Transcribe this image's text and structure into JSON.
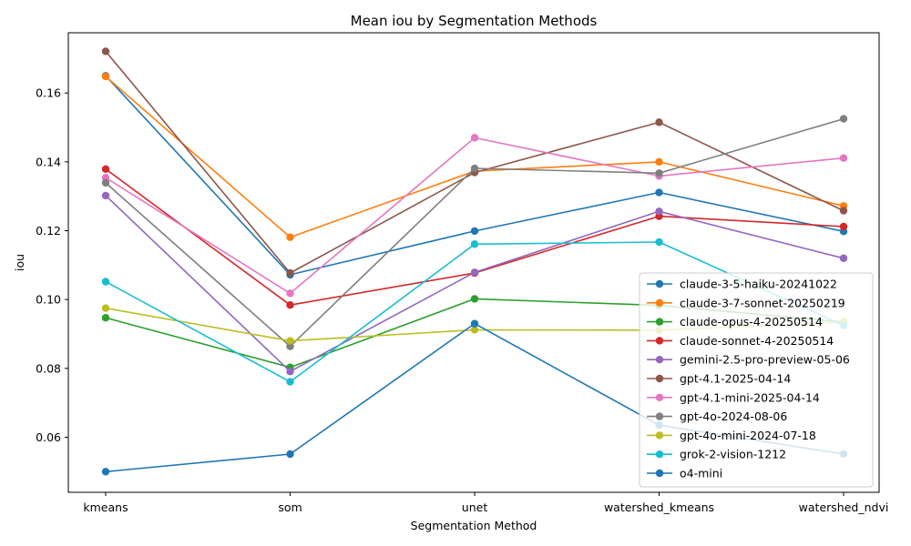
{
  "chart_data": {
    "type": "line",
    "title": "Mean iou by Segmentation Methods",
    "xlabel": "Segmentation Method",
    "ylabel": "iou",
    "categories": [
      "kmeans",
      "som",
      "unet",
      "watershed_kmeans",
      "watershed_ndvi"
    ],
    "ylim": [
      0.044,
      0.1775
    ],
    "yticks": [
      "0.06",
      "0.08",
      "0.10",
      "0.12",
      "0.14",
      "0.16"
    ],
    "grid": false,
    "legend_position": "lower right",
    "series": [
      {
        "name": "claude-3-5-haiku-20241022",
        "color": "#1f77b4",
        "values": [
          0.165,
          0.1072,
          0.1199,
          0.1311,
          0.1198
        ]
      },
      {
        "name": "claude-3-7-sonnet-20250219",
        "color": "#ff7f0e",
        "values": [
          0.1648,
          0.1181,
          0.1373,
          0.14,
          0.1272
        ]
      },
      {
        "name": "claude-opus-4-20250514",
        "color": "#2ca02c",
        "values": [
          0.0947,
          0.0803,
          0.1002,
          0.0983,
          0.0935
        ]
      },
      {
        "name": "claude-sonnet-4-20250514",
        "color": "#d62728",
        "values": [
          0.1379,
          0.0984,
          0.1077,
          0.1242,
          0.1212
        ]
      },
      {
        "name": "gemini-2.5-pro-preview-05-06",
        "color": "#9467bd",
        "values": [
          0.1302,
          0.0791,
          0.1079,
          0.1256,
          0.112
        ]
      },
      {
        "name": "gpt-4.1-2025-04-14",
        "color": "#8c564b",
        "values": [
          0.1721,
          0.1077,
          0.1369,
          0.1515,
          0.1258
        ]
      },
      {
        "name": "gpt-4.1-mini-2025-04-14",
        "color": "#e377c2",
        "values": [
          0.1354,
          0.1018,
          0.147,
          0.1359,
          0.1411
        ]
      },
      {
        "name": "gpt-4o-2024-08-06",
        "color": "#7f7f7f",
        "values": [
          0.1339,
          0.0864,
          0.1381,
          0.1367,
          0.1525
        ]
      },
      {
        "name": "gpt-4o-mini-2024-07-18",
        "color": "#bcbd22",
        "values": [
          0.0975,
          0.088,
          0.0912,
          0.0911,
          0.0935
        ]
      },
      {
        "name": "grok-2-vision-1212",
        "color": "#17becf",
        "values": [
          0.1052,
          0.0761,
          0.1161,
          0.1167,
          0.0925
        ]
      },
      {
        "name": "o4-mini",
        "color": "#1f77b4",
        "values": [
          0.05,
          0.0551,
          0.093,
          0.0635,
          0.0551
        ]
      }
    ]
  }
}
